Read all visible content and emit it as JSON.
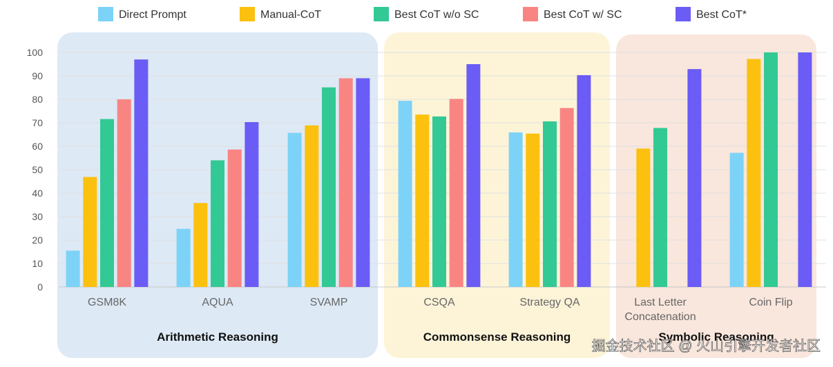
{
  "chart_data": {
    "type": "bar",
    "title": "",
    "xlabel": "",
    "ylabel": "",
    "ylim": [
      0,
      100
    ],
    "yticks": [
      0,
      10,
      20,
      30,
      40,
      50,
      60,
      70,
      80,
      90,
      100
    ],
    "grid": true,
    "legend_position": "top",
    "categories": [
      "GSM8K",
      "AQUA",
      "SVAMP",
      "CSQA",
      "Strategy QA",
      "Last Letter Concatenation",
      "Coin Flip"
    ],
    "category_label_lines": [
      [
        "GSM8K"
      ],
      [
        "AQUA"
      ],
      [
        "SVAMP"
      ],
      [
        "CSQA"
      ],
      [
        "Strategy QA"
      ],
      [
        "Last Letter",
        "Concatenation"
      ],
      [
        "Coin Flip"
      ]
    ],
    "series": [
      {
        "name": "Direct Prompt",
        "color": "#7dd3f7",
        "values": [
          15.5,
          24.8,
          65.7,
          79.4,
          65.9,
          null,
          57.2
        ]
      },
      {
        "name": "Manual-CoT",
        "color": "#fcc10f",
        "values": [
          46.9,
          35.8,
          68.9,
          73.5,
          65.4,
          59.0,
          97.2
        ]
      },
      {
        "name": "Best CoT w/o SC",
        "color": "#33c994",
        "values": [
          71.6,
          54.0,
          85.1,
          72.7,
          70.6,
          67.8,
          100
        ]
      },
      {
        "name": "Best CoT w/ SC",
        "color": "#f98583",
        "values": [
          80.0,
          58.6,
          89.0,
          80.2,
          76.3,
          null,
          null
        ]
      },
      {
        "name": "Best CoT*",
        "color": "#6b5cf5",
        "values": [
          97.0,
          70.3,
          89.0,
          95.0,
          90.3,
          92.9,
          100
        ]
      }
    ],
    "groups": [
      {
        "label": "Arithmetic Reasoning",
        "color": "#dde9f5",
        "categories": [
          0,
          1,
          2
        ]
      },
      {
        "label": "Commonsense Reasoning",
        "color": "#fdf4d8",
        "categories": [
          3,
          4
        ]
      },
      {
        "label": "Symbolic Reasoning",
        "color": "#f9e6dc",
        "categories": [
          5,
          6
        ]
      }
    ]
  },
  "watermark": "掘金技术社区 @ 火山引擎开发者社区"
}
